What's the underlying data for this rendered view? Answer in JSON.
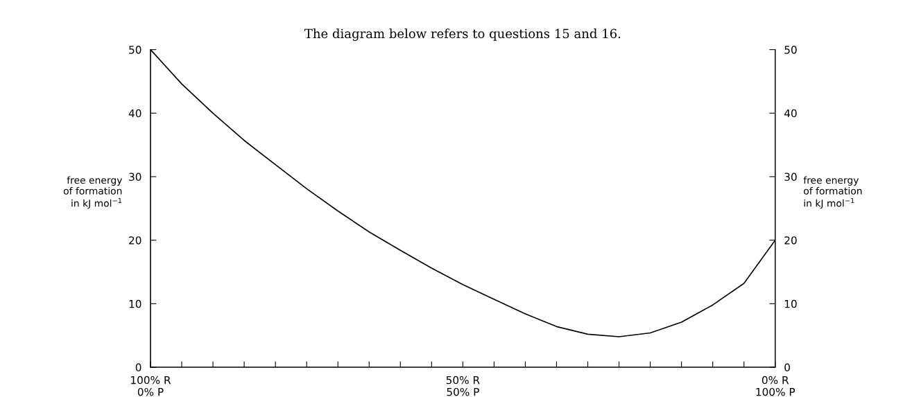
{
  "chart_data": {
    "type": "line",
    "title": "The diagram below refers to questions 15 and 16.",
    "categories": [
      "100% R\n0% P",
      null,
      null,
      null,
      null,
      null,
      null,
      null,
      null,
      null,
      "50% R\n50% P",
      null,
      null,
      null,
      null,
      null,
      null,
      null,
      null,
      null,
      "0% R\n100% P"
    ],
    "series": [
      {
        "color": "#000000",
        "values": [
          50,
          44.6,
          40,
          35.7,
          31.9,
          28.1,
          24.6,
          21.3,
          18.4,
          15.6,
          13.0,
          10.7,
          8.4,
          6.4,
          5.2,
          4.8,
          5.4,
          7.1,
          9.8,
          13.2,
          20
        ]
      }
    ],
    "ylim": [
      0,
      50
    ],
    "yticks": [
      0,
      10,
      20,
      30,
      40,
      50
    ],
    "y2lim": [
      0,
      50
    ],
    "y2ticks": [
      0,
      10,
      20,
      30,
      40,
      50
    ],
    "ylabel": "free energy\nof formation\nin kJ mol$^{−1}$",
    "y2label": "free energy\nof formation\nin kJ mol$^{−1}$",
    "grid": false,
    "legend": false,
    "marker": "none",
    "line_style": "solid"
  }
}
